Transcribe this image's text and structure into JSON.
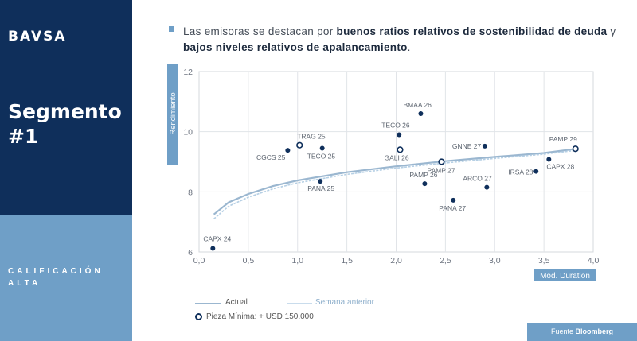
{
  "sidebar": {
    "logo": "BAVSA",
    "title": "Segmento #1",
    "rating": "CALIFICACIÓN ALTA"
  },
  "headline": {
    "part1": "Las emisoras se destacan por ",
    "bold1": "buenos ratios relativos de sostenibilidad de deuda",
    "part2": " y ",
    "bold2": "bajos niveles relativos de apalancamiento",
    "part3": "."
  },
  "colors": {
    "navy": "#0f2f5b",
    "light_blue": "#6f9fc7",
    "curve_actual": "#9bb7d0",
    "curve_previous": "#b5cfe4"
  },
  "chart_data": {
    "type": "scatter",
    "xlabel": "Mod. Duration",
    "ylabel": "Rendimiento",
    "xlim": [
      0,
      4
    ],
    "ylim": [
      6,
      12
    ],
    "xticks": [
      "0,0",
      "0,5",
      "1,0",
      "1,5",
      "2,0",
      "2,5",
      "3,0",
      "3,5",
      "4,0"
    ],
    "yticks": [
      "6",
      "8",
      "10",
      "12"
    ],
    "grid": true,
    "points": [
      {
        "label": "CAPX 24",
        "x": 0.14,
        "y": 6.12,
        "min_piece": false
      },
      {
        "label": "CGCS 25",
        "x": 0.9,
        "y": 9.38,
        "min_piece": false
      },
      {
        "label": "TRAG 25",
        "x": 1.02,
        "y": 9.55,
        "min_piece": true
      },
      {
        "label": "TECO 25",
        "x": 1.25,
        "y": 9.45,
        "min_piece": false
      },
      {
        "label": "PANA 25",
        "x": 1.23,
        "y": 8.35,
        "min_piece": false
      },
      {
        "label": "BMAA 26",
        "x": 2.25,
        "y": 10.6,
        "min_piece": false
      },
      {
        "label": "TECO 26",
        "x": 2.03,
        "y": 9.9,
        "min_piece": false
      },
      {
        "label": "GALI 26",
        "x": 2.04,
        "y": 9.4,
        "min_piece": true
      },
      {
        "label": "PAMP 27",
        "x": 2.46,
        "y": 9.0,
        "min_piece": true
      },
      {
        "label": "PAMP 26",
        "x": 2.29,
        "y": 8.27,
        "min_piece": false
      },
      {
        "label": "PANA 27",
        "x": 2.58,
        "y": 7.72,
        "min_piece": false
      },
      {
        "label": "GNNE 27",
        "x": 2.9,
        "y": 9.52,
        "min_piece": false
      },
      {
        "label": "ARCO 27",
        "x": 2.92,
        "y": 8.15,
        "min_piece": false
      },
      {
        "label": "IRSA 28",
        "x": 3.42,
        "y": 8.68,
        "min_piece": false
      },
      {
        "label": "CAPX 28",
        "x": 3.55,
        "y": 9.08,
        "min_piece": false
      },
      {
        "label": "PAMP 29",
        "x": 3.82,
        "y": 9.43,
        "min_piece": true
      }
    ],
    "curves": [
      {
        "name": "Actual",
        "x": [
          0.15,
          0.3,
          0.5,
          0.75,
          1.0,
          1.5,
          2.0,
          2.5,
          3.0,
          3.5,
          3.83
        ],
        "y": [
          7.25,
          7.65,
          7.93,
          8.19,
          8.38,
          8.65,
          8.85,
          9.02,
          9.16,
          9.29,
          9.43
        ]
      },
      {
        "name": "Semana anterior",
        "x": [
          0.15,
          0.3,
          0.5,
          0.75,
          1.0,
          1.5,
          2.0,
          2.5,
          3.0,
          3.5,
          3.83
        ],
        "y": [
          7.1,
          7.52,
          7.82,
          8.1,
          8.3,
          8.58,
          8.79,
          8.96,
          9.11,
          9.25,
          9.38
        ]
      }
    ]
  },
  "legend": {
    "actual": "Actual",
    "previous": "Semana anterior",
    "min_piece": "Pieza Mínima: + USD 150.000"
  },
  "source": {
    "prefix": "Fuente ",
    "name": "Bloomberg"
  }
}
